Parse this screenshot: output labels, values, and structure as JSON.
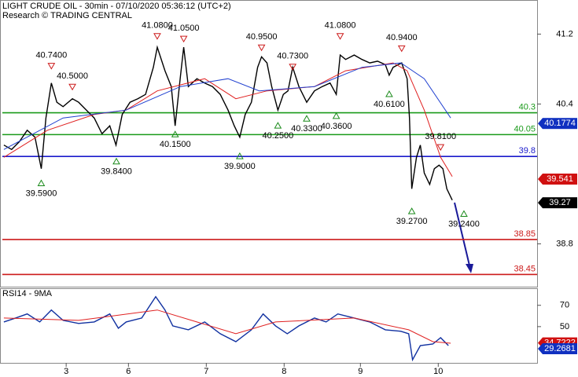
{
  "chart_data": [
    {
      "type": "line",
      "title": "LIGHT CRUDE OIL - 30min - 07/10/2020 05:36:12 (UTC+2)",
      "subtitle": "Research © TRADING CENTRAL",
      "xlim": [
        0.15,
        7.05
      ],
      "ylim": [
        38.31,
        41.59
      ],
      "yticks": [
        41.2,
        40.4,
        38.8
      ],
      "series": [
        {
          "color": "#000000",
          "x": [
            0.2,
            0.3,
            0.4,
            0.5,
            0.6,
            0.68,
            0.74,
            0.81,
            0.88,
            0.96,
            1.08,
            1.16,
            1.26,
            1.36,
            1.46,
            1.56,
            1.64,
            1.72,
            1.82,
            1.92,
            2.02,
            2.12,
            2.17,
            2.27,
            2.35,
            2.4,
            2.47,
            2.51,
            2.57,
            2.68,
            2.78,
            2.88,
            2.98,
            3.08,
            3.16,
            3.23,
            3.3,
            3.38,
            3.46,
            3.51,
            3.58,
            3.64,
            3.72,
            3.79,
            3.85,
            3.91,
            3.99,
            4.09,
            4.19,
            4.29,
            4.39,
            4.47,
            4.52,
            4.59,
            4.7,
            4.8,
            4.9,
            5.0,
            5.1,
            5.15,
            5.2,
            5.31,
            5.38,
            5.41,
            5.44,
            5.5,
            5.55,
            5.6,
            5.67,
            5.73,
            5.79,
            5.84,
            5.89,
            5.96
          ],
          "values": [
            39.93,
            39.88,
            39.97,
            40.1,
            40.02,
            39.66,
            40.24,
            40.64,
            40.42,
            40.37,
            40.46,
            40.42,
            40.33,
            40.24,
            40.06,
            40.15,
            39.93,
            40.28,
            40.42,
            40.46,
            40.51,
            40.82,
            41.05,
            40.78,
            40.6,
            40.15,
            40.73,
            41.05,
            40.6,
            40.69,
            40.64,
            40.6,
            40.51,
            40.33,
            40.15,
            40.02,
            40.28,
            40.42,
            40.82,
            40.94,
            40.87,
            40.6,
            40.33,
            40.51,
            40.55,
            40.82,
            40.6,
            40.42,
            40.55,
            40.6,
            40.64,
            40.51,
            40.96,
            40.91,
            40.96,
            40.91,
            40.87,
            40.89,
            40.85,
            40.73,
            40.82,
            40.87,
            40.69,
            40.24,
            39.43,
            39.79,
            39.93,
            39.61,
            39.48,
            39.66,
            39.7,
            39.66,
            39.43,
            39.3
          ]
        },
        {
          "color": "#e02020",
          "x": [
            0.2,
            0.76,
            1.36,
            1.77,
            2.17,
            2.78,
            3.18,
            3.58,
            4.19,
            4.59,
            5.2,
            5.38,
            5.6,
            5.81,
            5.96
          ],
          "values": [
            39.79,
            40.1,
            40.28,
            40.33,
            40.55,
            40.69,
            40.46,
            40.55,
            40.6,
            40.78,
            40.87,
            40.78,
            40.33,
            39.79,
            39.57
          ]
        },
        {
          "color": "#2040d0",
          "x": [
            0.2,
            0.96,
            1.77,
            2.47,
            3.08,
            3.48,
            4.19,
            4.8,
            5.3,
            5.6,
            5.94
          ],
          "values": [
            39.88,
            40.24,
            40.33,
            40.6,
            40.69,
            40.55,
            40.6,
            40.82,
            40.87,
            40.69,
            40.24
          ]
        }
      ],
      "levels": [
        {
          "value": 40.3,
          "color": "#1a9a1a"
        },
        {
          "value": 40.05,
          "color": "#1a9a1a"
        },
        {
          "value": 39.8,
          "color": "#1a1acc"
        },
        {
          "value": 38.85,
          "color": "#cc1a1a"
        },
        {
          "value": 38.45,
          "color": "#cc1a1a"
        }
      ],
      "annotations": [
        {
          "x": 0.68,
          "value": 39.59,
          "label": "39.5900",
          "kind": "low"
        },
        {
          "x": 0.81,
          "value": 40.74,
          "label": "40.7400",
          "kind": "high"
        },
        {
          "x": 1.08,
          "value": 40.5,
          "label": "40.5000",
          "kind": "high"
        },
        {
          "x": 1.645,
          "value": 39.84,
          "label": "39.8400",
          "kind": "low"
        },
        {
          "x": 2.17,
          "value": 41.08,
          "label": "41.0800",
          "kind": "high"
        },
        {
          "x": 2.51,
          "value": 41.05,
          "label": "41.0500",
          "kind": "high"
        },
        {
          "x": 2.4,
          "value": 40.15,
          "label": "40.1500",
          "kind": "low"
        },
        {
          "x": 3.23,
          "value": 39.9,
          "label": "39.9000",
          "kind": "low"
        },
        {
          "x": 3.51,
          "value": 40.95,
          "label": "40.9500",
          "kind": "high"
        },
        {
          "x": 3.72,
          "value": 40.25,
          "label": "40.2500",
          "kind": "low"
        },
        {
          "x": 3.91,
          "value": 40.73,
          "label": "40.7300",
          "kind": "high"
        },
        {
          "x": 4.09,
          "value": 40.33,
          "label": "40.3300",
          "kind": "low"
        },
        {
          "x": 4.47,
          "value": 40.36,
          "label": "40.3600",
          "kind": "low"
        },
        {
          "x": 4.52,
          "value": 41.08,
          "label": "41.0800",
          "kind": "high"
        },
        {
          "x": 5.31,
          "value": 40.94,
          "label": "40.9400",
          "kind": "high"
        },
        {
          "x": 5.15,
          "value": 40.61,
          "label": "40.6100",
          "kind": "low"
        },
        {
          "x": 5.44,
          "value": 39.27,
          "label": "39.2700",
          "kind": "low"
        },
        {
          "x": 5.81,
          "value": 39.81,
          "label": "39.8100",
          "kind": "high"
        },
        {
          "x": 6.11,
          "value": 39.24,
          "label": "39.2400",
          "kind": "low"
        }
      ],
      "price_labels": [
        {
          "value": 40.1774,
          "color": "#1030c0"
        },
        {
          "value": 39.541,
          "color": "#d01010"
        },
        {
          "value": 39.27,
          "color": "#000000"
        }
      ]
    },
    {
      "type": "line",
      "title": "RSI14 - 9MA",
      "xlim": [
        0.15,
        7.05
      ],
      "ylim": [
        16,
        86
      ],
      "yticks": [
        70,
        50
      ],
      "xticks": [
        {
          "value": 1.0,
          "label": "3"
        },
        {
          "value": 1.8,
          "label": "6"
        },
        {
          "value": 2.8,
          "label": "7"
        },
        {
          "value": 3.8,
          "label": "8"
        },
        {
          "value": 4.78,
          "label": "9"
        },
        {
          "value": 5.78,
          "label": "10"
        }
      ],
      "series": [
        {
          "color": "#1030a0",
          "x": [
            0.2,
            0.35,
            0.5,
            0.66,
            0.81,
            0.96,
            1.16,
            1.36,
            1.56,
            1.67,
            1.77,
            1.97,
            2.15,
            2.27,
            2.37,
            2.57,
            2.78,
            2.98,
            3.18,
            3.38,
            3.53,
            3.69,
            3.84,
            3.99,
            4.19,
            4.34,
            4.49,
            4.7,
            4.9,
            5.1,
            5.3,
            5.4,
            5.45,
            5.55,
            5.71,
            5.81,
            5.91
          ],
          "values": [
            54.4,
            58.1,
            61.9,
            54.4,
            65.6,
            55.9,
            53.0,
            54.4,
            61.9,
            48.5,
            54.4,
            58.1,
            78.1,
            65.6,
            50.7,
            47.0,
            54.4,
            43.3,
            35.9,
            47.0,
            61.9,
            50.7,
            43.3,
            50.7,
            58.1,
            54.4,
            61.9,
            58.1,
            54.4,
            47.0,
            45.6,
            43.3,
            18.9,
            32.2,
            33.7,
            39.6,
            32.2
          ]
        },
        {
          "color": "#e02020",
          "x": [
            0.2,
            1.16,
            2.17,
            3.18,
            3.69,
            4.7,
            5.4,
            5.71,
            5.94
          ],
          "values": [
            58.1,
            55.9,
            65.6,
            43.3,
            54.4,
            58.1,
            47.0,
            35.9,
            34.4
          ]
        }
      ],
      "price_labels": [
        {
          "value": 34.7222,
          "color": "#d01010"
        },
        {
          "value": 29.2681,
          "color": "#1030c0"
        }
      ]
    }
  ]
}
